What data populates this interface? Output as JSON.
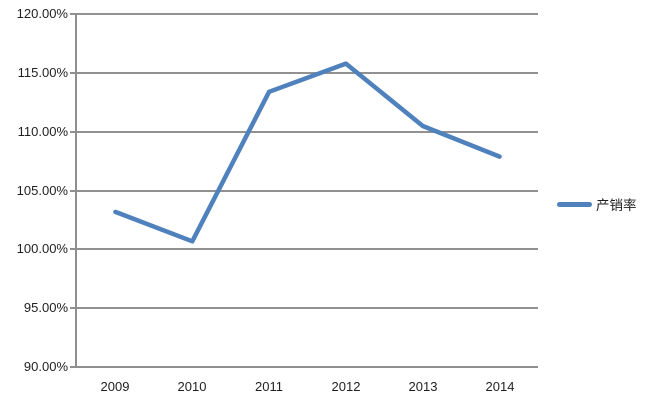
{
  "chart_data": {
    "type": "line",
    "title": "",
    "categories": [
      "2009",
      "2010",
      "2011",
      "2012",
      "2013",
      "2014"
    ],
    "series": [
      {
        "name": "产销率",
        "values": [
          103.1,
          100.6,
          113.3,
          115.7,
          110.4,
          107.8
        ],
        "color": "#4F81BD"
      }
    ],
    "ylim": [
      90,
      120
    ],
    "ytick_step": 5,
    "yticks": [
      120,
      115,
      110,
      105,
      100,
      95,
      90
    ],
    "ytick_labels": [
      "120.00%",
      "115.00%",
      "110.00%",
      "105.00%",
      "100.00%",
      "95.00%",
      "90.00%"
    ],
    "xlabel": "",
    "ylabel": "",
    "grid": "horizontal",
    "legend_position": "right"
  },
  "legend": {
    "label": "产销率"
  },
  "colors": {
    "series": "#4F81BD",
    "grid": "#919191",
    "axis": "#8f8f8f",
    "text": "#1f1f1f",
    "background": "#ffffff"
  }
}
